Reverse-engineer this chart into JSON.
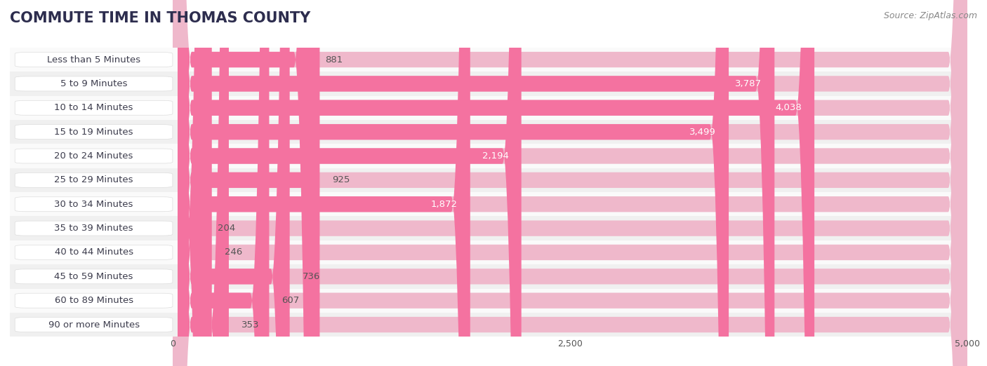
{
  "title": "COMMUTE TIME IN THOMAS COUNTY",
  "source": "Source: ZipAtlas.com",
  "categories": [
    "Less than 5 Minutes",
    "5 to 9 Minutes",
    "10 to 14 Minutes",
    "15 to 19 Minutes",
    "20 to 24 Minutes",
    "25 to 29 Minutes",
    "30 to 34 Minutes",
    "35 to 39 Minutes",
    "40 to 44 Minutes",
    "45 to 59 Minutes",
    "60 to 89 Minutes",
    "90 or more Minutes"
  ],
  "values": [
    881,
    3787,
    4038,
    3499,
    2194,
    925,
    1872,
    204,
    246,
    736,
    607,
    353
  ],
  "xlim": [
    0,
    5000
  ],
  "xticks": [
    0,
    2500,
    5000
  ],
  "bar_color": "#F472A0",
  "track_color": "#EFB8CB",
  "label_text_color": "#3d3d4d",
  "title_color": "#2d2d4e",
  "source_color": "#888888",
  "value_color_inside": "#FFFFFF",
  "value_color_outside": "#555555",
  "background_color": "#FFFFFF",
  "title_fontsize": 15,
  "label_fontsize": 9.5,
  "value_fontsize": 9.5,
  "source_fontsize": 9,
  "bar_height": 0.65,
  "row_bg_colors": [
    "#FAFAFA",
    "#F0F0F0"
  ],
  "value_threshold": 1200
}
